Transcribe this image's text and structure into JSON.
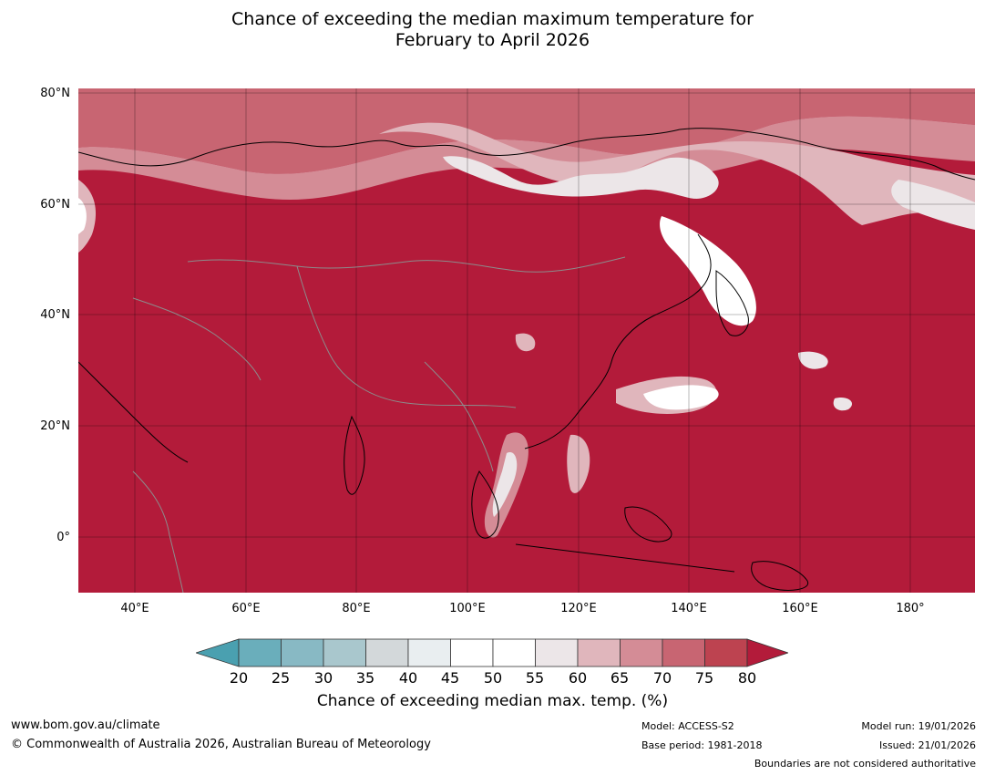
{
  "title": {
    "line1": "Chance of exceeding the median maximum temperature for",
    "line2": "February to April 2026"
  },
  "map": {
    "region": "Asia and western Pacific",
    "background_color": "#b31b3a",
    "lat_labels": [
      "80°N",
      "60°N",
      "40°N",
      "20°N",
      "0°"
    ],
    "lon_labels": [
      "40°E",
      "60°E",
      "80°E",
      "100°E",
      "120°E",
      "140°E",
      "160°E",
      "180°"
    ]
  },
  "colorbar": {
    "ticks": [
      "20",
      "25",
      "30",
      "35",
      "40",
      "45",
      "50",
      "55",
      "60",
      "65",
      "70",
      "75",
      "80"
    ],
    "colors": [
      "#4aa0b0",
      "#6aaebb",
      "#88b9c4",
      "#a9c7cd",
      "#d3d8da",
      "#e9eef0",
      "#ffffff",
      "#ffffff",
      "#ece6e8",
      "#e0b6bc",
      "#d48c96",
      "#c86572",
      "#bd4350",
      "#b31b3a"
    ],
    "label": "Chance of exceeding median max. temp. (%)"
  },
  "footer": {
    "website": "www.bom.gov.au/climate",
    "copyright": "© Commonwealth of Australia 2026, Australian Bureau of Meteorology",
    "model": "Model: ACCESS-S2",
    "base_period": "Base period: 1981-2018",
    "model_run": "Model run: 19/01/2026",
    "issued": "Issued: 21/01/2026",
    "boundaries_note": "Boundaries are not considered authoritative"
  }
}
